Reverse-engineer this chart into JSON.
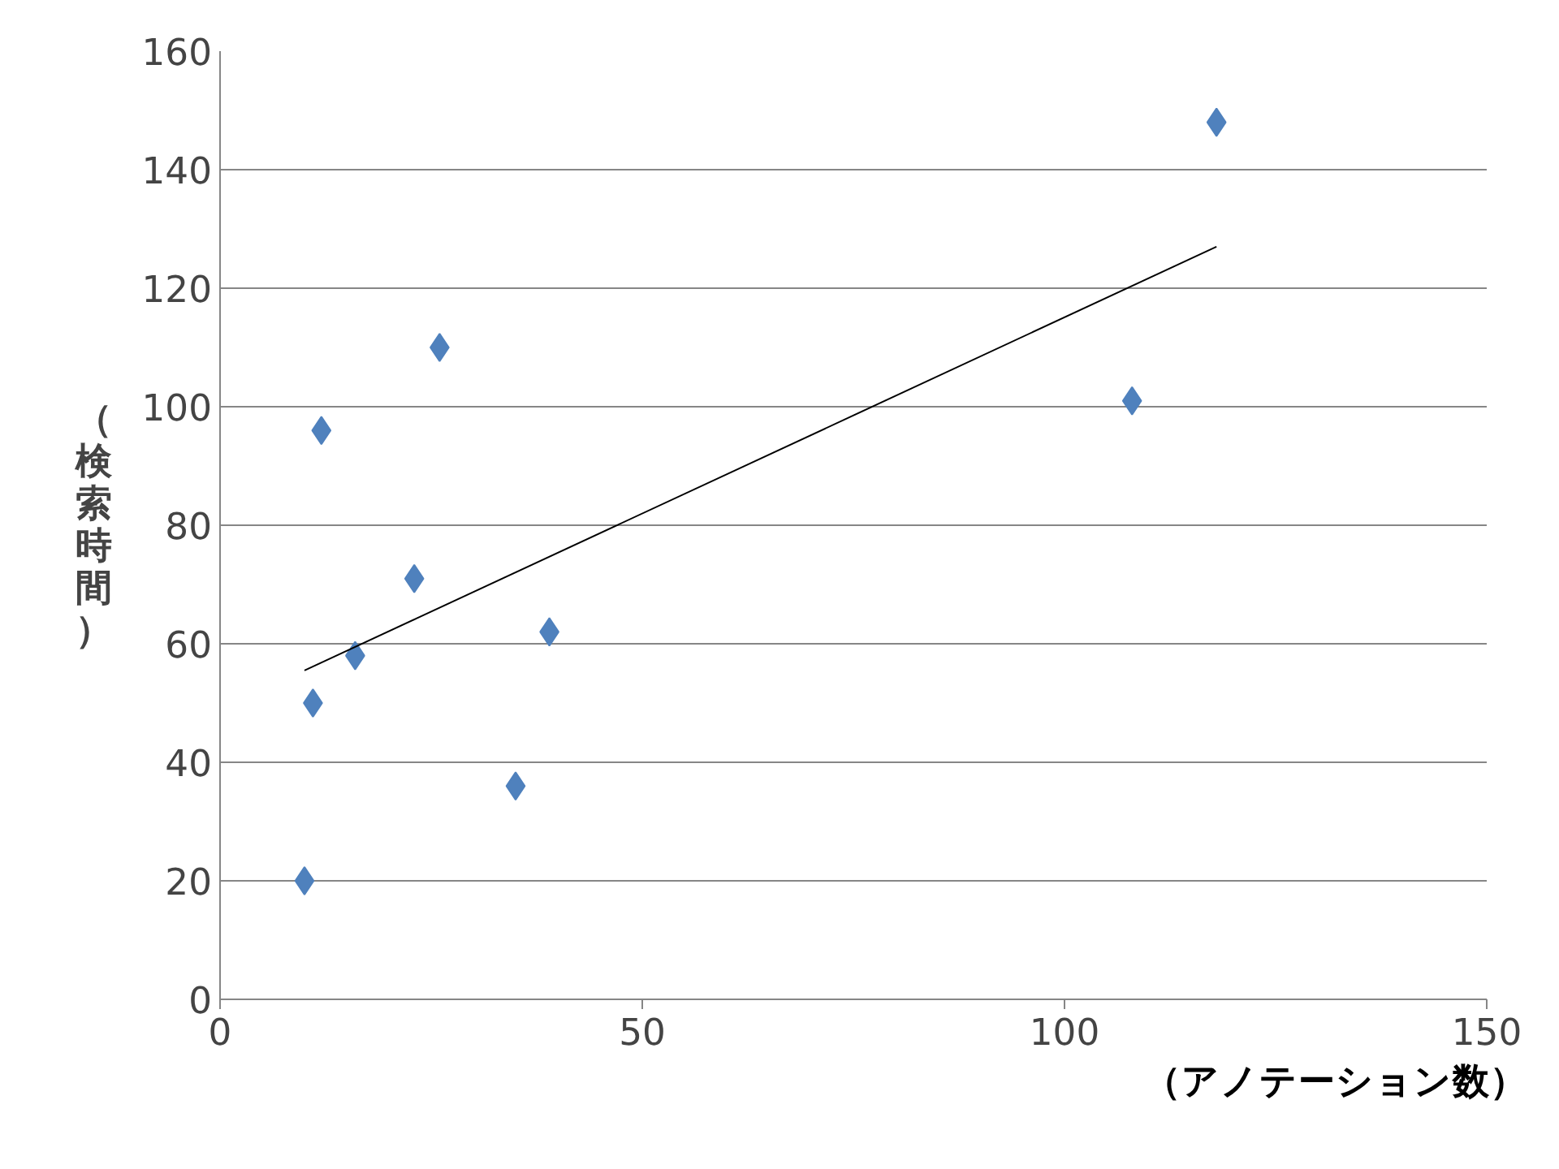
{
  "chart_data": {
    "type": "scatter",
    "xlabel": "（アノテーション数）",
    "ylabel": "（検索時間）",
    "x": [
      10,
      11,
      12,
      16,
      23,
      26,
      35,
      39,
      108,
      118
    ],
    "series": [
      {
        "color": "#4f81bd",
        "values": [
          20,
          50,
          96,
          58,
          71,
          110,
          36,
          62,
          101,
          148
        ],
        "marker": "diamond"
      },
      {
        "type": "line",
        "color": "#000000",
        "x": [
          10,
          118
        ],
        "values": [
          55.5,
          127
        ],
        "marker": "none"
      }
    ],
    "xlim": [
      0,
      150
    ],
    "ylim": [
      0,
      160
    ],
    "xticks": [
      0,
      50,
      100,
      150
    ],
    "yticks": [
      0,
      20,
      40,
      60,
      80,
      100,
      120,
      140,
      160
    ],
    "grid": "y"
  }
}
